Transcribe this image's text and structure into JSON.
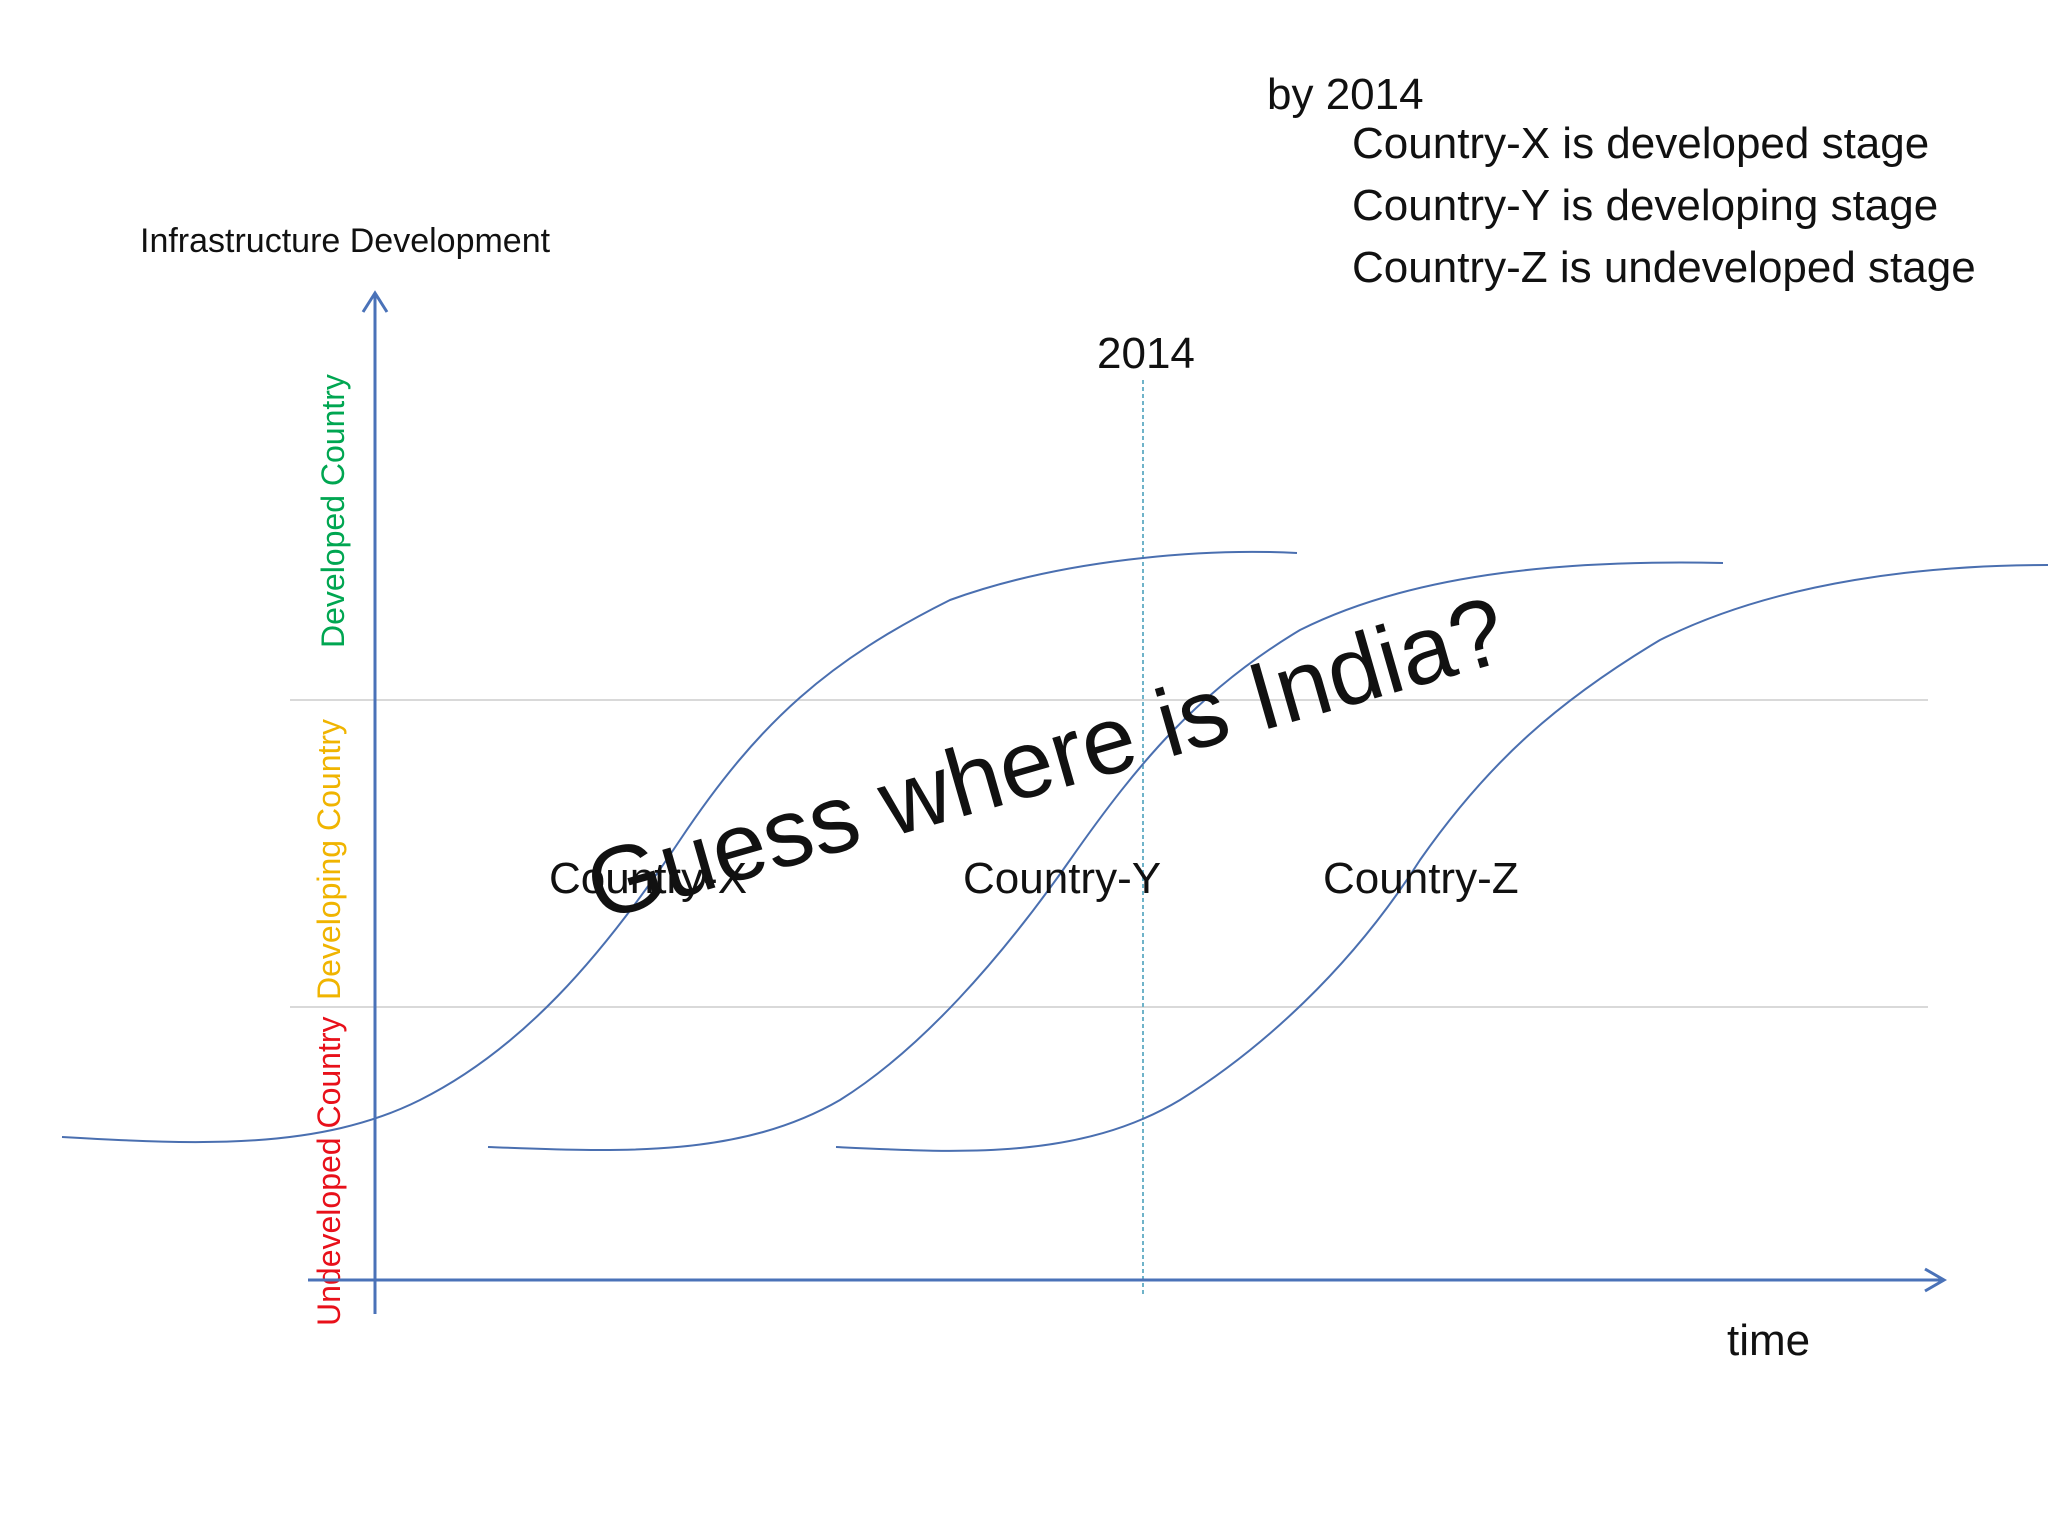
{
  "summary": {
    "heading": "by 2014",
    "lines": [
      "Country-X is developed stage",
      "Country-Y is developing stage",
      "Country-Z is undeveloped stage"
    ]
  },
  "axes": {
    "y_title": "Infrastructure Development",
    "x_title": "time",
    "marker_label": "2014"
  },
  "stages": [
    {
      "label": "Developed Country",
      "color": "#00a651"
    },
    {
      "label": "Developing Country",
      "color": "#f0b400"
    },
    {
      "label": "Undeveloped Country",
      "color": "#e8101a"
    }
  ],
  "curves": [
    {
      "label": "Country-X"
    },
    {
      "label": "Country-Y"
    },
    {
      "label": "Country-Z"
    }
  ],
  "overlay": "Guess where is India?",
  "colors": {
    "axis": "#4a72b8",
    "curve": "#4a6fb0",
    "band_line": "#d9d9d9",
    "marker_line": "#6fb3c9",
    "text": "#111111"
  }
}
